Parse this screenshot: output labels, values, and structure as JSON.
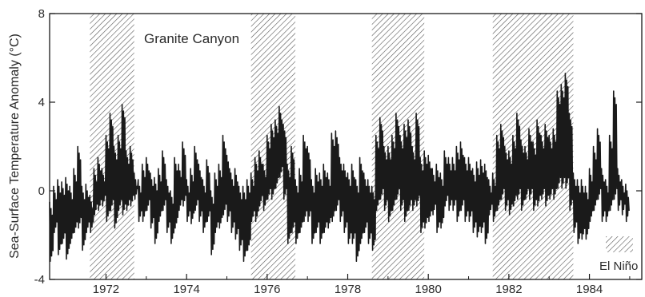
{
  "chart_data": {
    "type": "line",
    "title": "",
    "annotation": "Granite Canyon",
    "ylabel": "Sea-Surface Temperature Anomaly (°C)",
    "xlabel": "",
    "xlim": [
      1970.6,
      1985.3
    ],
    "ylim": [
      -4,
      8
    ],
    "x_ticks": [
      1972,
      1974,
      1976,
      1978,
      1980,
      1982,
      1984
    ],
    "x_tick_labels": [
      "1972",
      "1974",
      "1976",
      "1978",
      "1980",
      "1982",
      "1984"
    ],
    "y_ticks": [
      -4,
      0,
      4,
      8
    ],
    "y_tick_labels": [
      "-4",
      "0",
      "4",
      "8"
    ],
    "grid": false,
    "legend": {
      "label": "El Niño",
      "position": "bottom-right",
      "pattern": "hatched"
    },
    "el_nino_periods": [
      [
        1971.6,
        1972.7
      ],
      [
        1975.6,
        1976.7
      ],
      [
        1978.6,
        1979.9
      ],
      [
        1981.6,
        1983.6
      ]
    ],
    "series": [
      {
        "name": "",
        "color": "#1a1a1a",
        "x": [
          1970.6,
          1970.7,
          1970.8,
          1970.9,
          1971.0,
          1971.1,
          1971.2,
          1971.3,
          1971.4,
          1971.5,
          1971.6,
          1971.7,
          1971.8,
          1971.9,
          1972.0,
          1972.1,
          1972.2,
          1972.3,
          1972.4,
          1972.5,
          1972.6,
          1972.7,
          1972.8,
          1972.9,
          1973.0,
          1973.1,
          1973.2,
          1973.3,
          1973.4,
          1973.5,
          1973.6,
          1973.7,
          1973.8,
          1973.9,
          1974.0,
          1974.1,
          1974.2,
          1974.3,
          1974.4,
          1974.5,
          1974.6,
          1974.7,
          1974.8,
          1974.9,
          1975.0,
          1975.1,
          1975.2,
          1975.3,
          1975.4,
          1975.5,
          1975.6,
          1975.7,
          1975.8,
          1975.9,
          1976.0,
          1976.1,
          1976.2,
          1976.3,
          1976.4,
          1976.5,
          1976.6,
          1976.7,
          1976.8,
          1976.9,
          1977.0,
          1977.1,
          1977.2,
          1977.3,
          1977.4,
          1977.5,
          1977.6,
          1977.7,
          1977.8,
          1977.9,
          1978.0,
          1978.1,
          1978.2,
          1978.3,
          1978.4,
          1978.5,
          1978.6,
          1978.7,
          1978.8,
          1978.9,
          1979.0,
          1979.1,
          1979.2,
          1979.3,
          1979.4,
          1979.5,
          1979.6,
          1979.7,
          1979.8,
          1979.9,
          1980.0,
          1980.1,
          1980.2,
          1980.3,
          1980.4,
          1980.5,
          1980.6,
          1980.7,
          1980.8,
          1980.9,
          1981.0,
          1981.1,
          1981.2,
          1981.3,
          1981.4,
          1981.5,
          1981.6,
          1981.7,
          1981.8,
          1981.9,
          1982.0,
          1982.1,
          1982.2,
          1982.3,
          1982.4,
          1982.5,
          1982.6,
          1982.7,
          1982.8,
          1982.9,
          1983.0,
          1983.1,
          1983.2,
          1983.3,
          1983.4,
          1983.5,
          1983.6,
          1983.7,
          1983.8,
          1983.9,
          1984.0,
          1984.1,
          1984.2,
          1984.3,
          1984.4,
          1984.5,
          1984.6,
          1984.7,
          1984.8,
          1984.9
        ],
        "hi": [
          -0.5,
          0.2,
          0.5,
          0.4,
          0.6,
          0.2,
          1.0,
          2.0,
          0.2,
          0.3,
          -0.2,
          1.0,
          1.5,
          1.0,
          2.5,
          3.5,
          2.0,
          2.5,
          3.9,
          1.8,
          2.0,
          0.8,
          0.5,
          1.2,
          1.5,
          0.8,
          0.6,
          1.0,
          1.8,
          0.5,
          0.0,
          1.5,
          1.2,
          2.2,
          0.5,
          1.0,
          2.0,
          1.2,
          0.5,
          1.4,
          0.0,
          0.8,
          1.2,
          2.5,
          1.6,
          0.8,
          1.0,
          0.2,
          0.2,
          0.5,
          0.8,
          1.5,
          1.8,
          1.2,
          2.5,
          3.0,
          3.2,
          3.8,
          3.0,
          1.2,
          2.0,
          0.5,
          1.0,
          2.5,
          2.0,
          0.5,
          1.0,
          0.8,
          1.2,
          0.8,
          2.6,
          2.7,
          1.5,
          1.2,
          0.8,
          1.2,
          0.5,
          1.5,
          0.8,
          0.5,
          0.2,
          2.5,
          3.3,
          2.0,
          2.0,
          2.5,
          3.5,
          2.5,
          3.0,
          3.2,
          2.0,
          3.5,
          1.5,
          1.8,
          1.6,
          1.0,
          1.2,
          0.8,
          1.8,
          1.5,
          1.5,
          2.0,
          2.2,
          1.5,
          1.5,
          1.0,
          1.3,
          1.4,
          1.2,
          0.5,
          0.8,
          2.5,
          3.0,
          2.0,
          1.8,
          2.5,
          3.5,
          2.3,
          2.0,
          2.8,
          2.2,
          3.2,
          2.5,
          3.0,
          2.5,
          2.8,
          4.5,
          4.8,
          5.3,
          3.5,
          0.8,
          0.5,
          0.5,
          0.2,
          1.0,
          2.0,
          2.8,
          1.0,
          0.5,
          2.5,
          4.5,
          1.0,
          0.5,
          0.3
        ],
        "lo": [
          -3.3,
          -2.0,
          -3.0,
          -2.5,
          -3.2,
          -2.5,
          -2.0,
          -1.8,
          -2.8,
          -2.0,
          -2.0,
          -1.2,
          -1.0,
          -0.8,
          -1.5,
          -1.0,
          -1.8,
          -1.0,
          -1.2,
          -1.0,
          -0.8,
          -0.5,
          -1.5,
          -1.5,
          -1.0,
          -1.8,
          -2.5,
          -1.5,
          -1.0,
          -2.0,
          -2.5,
          -1.8,
          -1.0,
          -0.8,
          -1.5,
          -1.6,
          -1.0,
          -1.5,
          -2.0,
          -1.5,
          -3.0,
          -2.0,
          -1.8,
          -1.2,
          -1.5,
          -2.0,
          -2.3,
          -2.8,
          -3.3,
          -2.8,
          -1.5,
          -1.5,
          -0.8,
          -1.0,
          -0.5,
          -0.5,
          0.0,
          0.5,
          -0.5,
          -2.5,
          -2.0,
          -2.5,
          -2.0,
          -1.5,
          -1.5,
          -2.5,
          -2.0,
          -2.5,
          -2.0,
          -1.8,
          -1.5,
          -1.0,
          -1.5,
          -2.0,
          -2.5,
          -2.5,
          -3.3,
          -2.5,
          -2.0,
          -2.5,
          -2.8,
          -1.0,
          -0.5,
          -1.0,
          -1.5,
          -1.0,
          -0.5,
          -1.0,
          -1.5,
          -1.0,
          -1.0,
          -0.8,
          -2.0,
          -1.8,
          -1.5,
          -1.2,
          -2.0,
          -1.8,
          -0.8,
          -1.0,
          -1.0,
          -1.5,
          -1.0,
          -1.5,
          -1.5,
          -2.0,
          -2.2,
          -2.0,
          -2.5,
          -1.2,
          -1.5,
          -1.0,
          -0.5,
          -1.0,
          -1.2,
          -0.8,
          -0.5,
          -1.0,
          -0.5,
          -0.5,
          -1.0,
          -0.8,
          -0.5,
          -0.8,
          -0.5,
          -0.5,
          0.0,
          0.0,
          0.0,
          -1.0,
          -2.0,
          -2.5,
          -2.3,
          -2.3,
          -1.5,
          -1.0,
          -0.5,
          -1.5,
          -1.5,
          -1.0,
          -0.5,
          -1.0,
          -1.2,
          -1.5
        ]
      }
    ]
  }
}
